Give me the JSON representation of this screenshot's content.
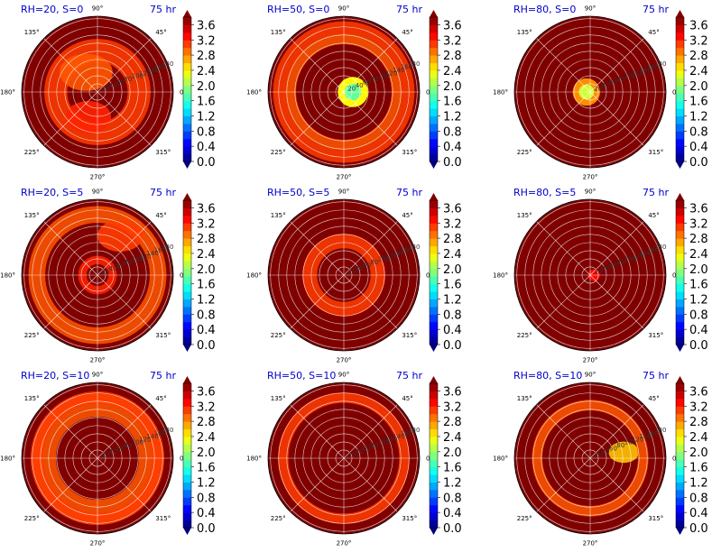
{
  "chart_data": {
    "type": "heatmap",
    "layout": "3x3 grid of polar contour plots, each with its own colorbar",
    "colormap": "jet",
    "colorbar_ticks": [
      "0.0",
      "0.4",
      "0.8",
      "1.2",
      "1.6",
      "2.0",
      "2.4",
      "2.8",
      "3.2",
      "3.6"
    ],
    "colorbar_range": [
      0.0,
      3.8
    ],
    "angle_labels": [
      "90°",
      "45°",
      "0°",
      "315°",
      "270°",
      "225°",
      "180°",
      "135°"
    ],
    "radial_labels": [
      "20",
      "40",
      "60",
      "80",
      "100",
      "120",
      "140",
      "160",
      "180"
    ],
    "panels": [
      {
        "title": "RH=20, S=0",
        "time": "75 hr",
        "background_level": 3.8,
        "features": [
          {
            "angle_deg": 0,
            "radius": 0.55,
            "level": 3.1,
            "size": 0.55,
            "kind": "swirl"
          },
          {
            "angle_deg": 120,
            "radius": 0.3,
            "level": 3.0,
            "size": 0.35,
            "kind": "blob"
          },
          {
            "angle_deg": 250,
            "radius": 0.35,
            "level": 3.2,
            "size": 0.3,
            "kind": "blob"
          }
        ]
      },
      {
        "title": "RH=50, S=0",
        "time": "75 hr",
        "background_level": 3.8,
        "features": [
          {
            "angle_deg": 0,
            "radius": 0.12,
            "level": 1.8,
            "size": 0.2,
            "kind": "core"
          },
          {
            "angle_deg": 160,
            "radius": 0.7,
            "level": 3.0,
            "size": 0.25,
            "kind": "arc"
          },
          {
            "angle_deg": 300,
            "radius": 0.85,
            "level": 3.1,
            "size": 0.3,
            "kind": "arc"
          }
        ]
      },
      {
        "title": "RH=80, S=0",
        "time": "75 hr",
        "background_level": 3.8,
        "features": [
          {
            "angle_deg": 180,
            "radius": 0.05,
            "level": 2.2,
            "size": 0.18,
            "kind": "core"
          }
        ]
      },
      {
        "title": "RH=20, S=5",
        "time": "75 hr",
        "background_level": 3.8,
        "features": [
          {
            "angle_deg": 200,
            "radius": 0.8,
            "level": 3.0,
            "size": 0.4,
            "kind": "arc"
          },
          {
            "angle_deg": 60,
            "radius": 0.6,
            "level": 3.1,
            "size": 0.3,
            "kind": "blob"
          },
          {
            "angle_deg": 0,
            "radius": 0.2,
            "level": 3.2,
            "size": 0.2,
            "kind": "ring"
          }
        ]
      },
      {
        "title": "RH=50, S=5",
        "time": "75 hr",
        "background_level": 3.8,
        "features": [
          {
            "angle_deg": 170,
            "radius": 0.45,
            "level": 3.1,
            "size": 0.35,
            "kind": "arc"
          }
        ]
      },
      {
        "title": "RH=80, S=5",
        "time": "75 hr",
        "background_level": 3.8,
        "features": [
          {
            "angle_deg": 0,
            "radius": 0.05,
            "level": 3.3,
            "size": 0.14,
            "kind": "core"
          }
        ]
      },
      {
        "title": "RH=20, S=10",
        "time": "75 hr",
        "background_level": 3.8,
        "features": [
          {
            "angle_deg": 180,
            "radius": 0.7,
            "level": 3.0,
            "size": 0.55,
            "kind": "arc"
          },
          {
            "angle_deg": 300,
            "radius": 0.8,
            "level": 3.1,
            "size": 0.3,
            "kind": "arc"
          }
        ]
      },
      {
        "title": "RH=50, S=10",
        "time": "75 hr",
        "background_level": 3.8,
        "features": [
          {
            "angle_deg": 60,
            "radius": 0.8,
            "level": 3.1,
            "size": 0.25,
            "kind": "arc"
          }
        ]
      },
      {
        "title": "RH=80, S=10",
        "time": "75 hr",
        "background_level": 3.8,
        "features": [
          {
            "angle_deg": 10,
            "radius": 0.45,
            "level": 2.6,
            "size": 0.2,
            "kind": "blob"
          },
          {
            "angle_deg": 330,
            "radius": 0.7,
            "level": 3.0,
            "size": 0.25,
            "kind": "arc"
          }
        ]
      }
    ]
  }
}
